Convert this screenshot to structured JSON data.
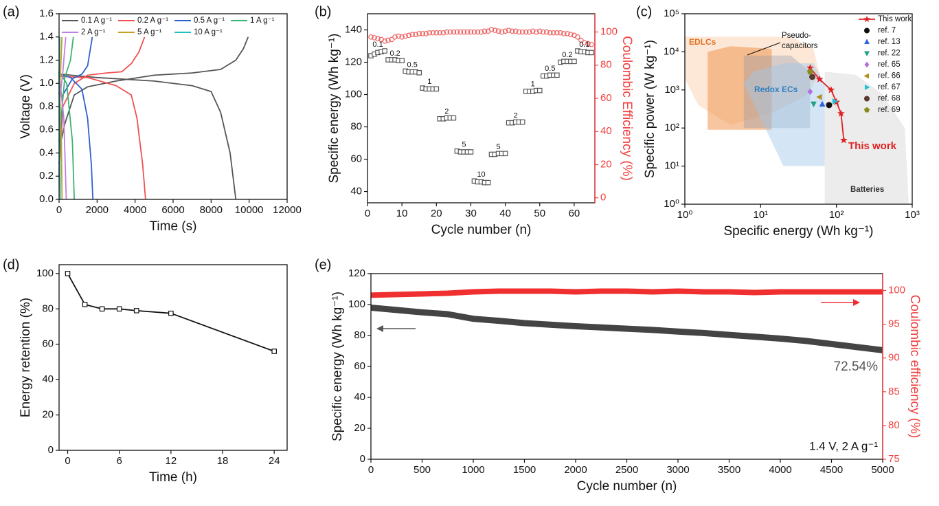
{
  "chart_data": [
    {
      "type": "line",
      "label": "(a)",
      "xlabel": "Time (s)",
      "ylabel": "Voltage (V)",
      "xlim": [
        0,
        12000
      ],
      "xticks": [
        0,
        2000,
        4000,
        6000,
        8000,
        10000,
        12000
      ],
      "ylim": [
        0,
        1.6
      ],
      "yticks": [
        {
          "value": 0,
          "label": "0.0"
        },
        0.2,
        0.4,
        0.6,
        0.8,
        {
          "value": 1,
          "label": "1.0"
        },
        1.2,
        1.4,
        1.6
      ],
      "legend": "top",
      "series": [
        {
          "name": "0.1 A g⁻¹",
          "color": "#555555",
          "mode": "lines",
          "x": [
            0,
            100,
            300,
            800,
            1500,
            3000,
            5000,
            7000,
            8500,
            9300,
            9700,
            9950,
            null,
            0,
            2000,
            5000,
            7000,
            8000,
            8500,
            9000,
            9300
          ],
          "values": [
            0.25,
            0.5,
            0.65,
            0.9,
            0.97,
            1.02,
            1.07,
            1.09,
            1.12,
            1.2,
            1.3,
            1.4,
            null,
            1.08,
            1.05,
            1.02,
            0.98,
            0.93,
            0.75,
            0.4,
            0
          ]
        },
        {
          "name": "0.2 A g⁻¹",
          "color": "#f05050",
          "mode": "lines",
          "x": [
            0,
            200,
            800,
            1500,
            2500,
            3300,
            3800,
            4200,
            4500,
            null,
            0,
            1500,
            3000,
            3800,
            4100,
            4400,
            4550
          ],
          "values": [
            0.2,
            0.8,
            1.0,
            1.07,
            1.09,
            1.1,
            1.17,
            1.27,
            1.4,
            null,
            1.06,
            1.05,
            0.98,
            0.9,
            0.7,
            0.3,
            0
          ]
        },
        {
          "name": "0.5 A g⁻¹",
          "color": "#3060d0",
          "mode": "lines",
          "x": [
            0,
            200,
            700,
            1200,
            1500,
            1750,
            null,
            0,
            600,
            1200,
            1500,
            1700,
            1780
          ],
          "values": [
            0.3,
            0.9,
            1.04,
            1.08,
            1.15,
            1.4,
            null,
            1.08,
            1.05,
            0.95,
            0.7,
            0.3,
            0
          ]
        },
        {
          "name": "1 A g⁻¹",
          "color": "#3cb371",
          "mode": "lines",
          "x": [
            0,
            300,
            600,
            750,
            null,
            0,
            400,
            700,
            800
          ],
          "values": [
            0.5,
            1.05,
            1.2,
            1.4,
            null,
            1.1,
            1.0,
            0.5,
            0
          ]
        },
        {
          "name": "2 A g⁻¹",
          "color": "#c080e0",
          "mode": "lines",
          "x": [
            0,
            200,
            350,
            null,
            0,
            250,
            380
          ],
          "values": [
            0.8,
            1.1,
            1.4,
            null,
            1.1,
            0.7,
            0
          ]
        },
        {
          "name": "5 A g⁻¹",
          "color": "#c8a020",
          "mode": "lines",
          "x": [
            0,
            80,
            150,
            null,
            0,
            120,
            160
          ],
          "values": [
            0.9,
            1.1,
            1.4,
            null,
            1.1,
            0.5,
            0
          ]
        },
        {
          "name": "10 A g⁻¹",
          "color": "#20c0c0",
          "mode": "lines",
          "x": [
            0,
            40,
            null,
            0,
            60
          ],
          "values": [
            1.0,
            1.4,
            null,
            1.1,
            0
          ]
        }
      ]
    },
    {
      "type": "scatter",
      "label": "(b)",
      "xlabel": "Cycle number (n)",
      "ylabel": "Specific energy (Wh kg⁻¹)",
      "y2label": "Coulombic Efficiency (%)",
      "y2_color": "#f04040",
      "xlim": [
        0,
        66
      ],
      "xticks": [
        0,
        10,
        20,
        30,
        40,
        50,
        60
      ],
      "ylim": [
        33,
        150
      ],
      "yticks": [
        40,
        60,
        80,
        100,
        120,
        140
      ],
      "y2lim": [
        -3,
        111
      ],
      "y2ticks": [
        0,
        20,
        40,
        60,
        80,
        100
      ],
      "annotations": [
        "0.1",
        "0.2",
        "0.5",
        "1",
        "2",
        "5",
        "10",
        "5",
        "2",
        "1",
        "0.5",
        "0.2",
        "0.1"
      ],
      "x": [
        1,
        2,
        3,
        4,
        5,
        6,
        7,
        8,
        9,
        10,
        11,
        12,
        13,
        14,
        15,
        16,
        17,
        18,
        19,
        20,
        21,
        22,
        23,
        24,
        25,
        26,
        27,
        28,
        29,
        30,
        31,
        32,
        33,
        34,
        35,
        36,
        37,
        38,
        39,
        40,
        41,
        42,
        43,
        44,
        45,
        46,
        47,
        48,
        49,
        50,
        51,
        52,
        53,
        54,
        55,
        56,
        57,
        58,
        59,
        60,
        61,
        62,
        63,
        64,
        65
      ],
      "series": [
        {
          "color": "#555555",
          "mode": "markers",
          "marker": "square-open",
          "values": [
            124,
            125,
            126,
            126.5,
            127,
            121.5,
            121.5,
            121.5,
            121,
            121,
            114.5,
            114,
            114,
            114,
            113.5,
            104,
            103.5,
            103.5,
            103.5,
            103.5,
            85,
            85,
            85.5,
            85.5,
            85.5,
            65,
            64.5,
            64.5,
            64.5,
            64.5,
            46.5,
            46,
            46,
            45.5,
            45.5,
            63,
            63,
            63.5,
            63.5,
            63.5,
            82.5,
            82.5,
            83,
            83,
            83,
            102,
            102,
            102,
            102.5,
            102.5,
            111.5,
            111.5,
            112,
            112,
            112,
            120,
            120.5,
            120.5,
            120.5,
            120.5,
            127,
            126.5,
            126.5,
            126,
            126
          ]
        },
        {
          "color": "#f06060",
          "mode": "markers",
          "marker": "circle-open",
          "axis": "y2",
          "values": [
            97,
            96.5,
            96,
            95.5,
            94.5,
            95,
            95.5,
            97,
            97.5,
            97,
            97.5,
            98,
            98.5,
            98.5,
            99,
            99,
            99,
            99.5,
            99.5,
            99.5,
            99.5,
            99.5,
            100,
            100,
            100,
            100,
            100,
            100,
            100,
            100,
            100,
            100,
            100,
            100.5,
            100.5,
            101.5,
            101,
            100.5,
            100,
            100.5,
            101,
            100.5,
            100.5,
            100,
            100,
            100,
            100,
            100.5,
            100,
            100.5,
            100,
            100,
            99.5,
            99.5,
            99.5,
            99.5,
            99,
            99,
            98.5,
            98,
            97,
            95,
            93.5,
            93,
            92.5
          ]
        }
      ]
    },
    {
      "type": "scatter",
      "label": "(c)",
      "xlabel": "Specific energy (Wh kg⁻¹)",
      "ylabel": "Specific power (W kg⁻¹)",
      "xscale": "log",
      "yscale": "log",
      "xlim": [
        1,
        1000
      ],
      "xticks": [
        {
          "value": 1,
          "label": "10⁰"
        },
        {
          "value": 10,
          "label": "10¹"
        },
        {
          "value": 100,
          "label": "10²"
        },
        {
          "value": 1000,
          "label": "10³"
        }
      ],
      "ylim": [
        1,
        100000
      ],
      "yticks": [
        {
          "value": 1,
          "label": "10⁰"
        },
        {
          "value": 10,
          "label": "10¹"
        },
        {
          "value": 100,
          "label": "10²"
        },
        {
          "value": 1000,
          "label": "10³"
        },
        {
          "value": 10000,
          "label": "10⁴"
        },
        {
          "value": 100000,
          "label": "10⁵"
        }
      ],
      "legend": "upper right",
      "annotations": [
        "EDLCs",
        "Pseudo-",
        "capacitors",
        "Redox ECs",
        "Batteries",
        "This work"
      ],
      "series": [
        {
          "name": "This work",
          "color": "#e02020",
          "mode": "lines+markers",
          "marker": "star",
          "x": [
            45,
            60,
            85,
            100,
            115,
            125
          ],
          "values": [
            3800,
            1900,
            1000,
            480,
            240,
            48
          ]
        },
        {
          "name": "ref. 7",
          "color": "#111111",
          "mode": "markers",
          "marker": "circle",
          "x": [
            80
          ],
          "values": [
            400
          ]
        },
        {
          "name": "ref. 13",
          "color": "#3060e0",
          "mode": "markers",
          "marker": "triangle-up",
          "x": [
            65
          ],
          "values": [
            420
          ]
        },
        {
          "name": "ref. 22",
          "color": "#20a080",
          "mode": "markers",
          "marker": "triangle-down",
          "x": [
            50
          ],
          "values": [
            430
          ]
        },
        {
          "name": "ref. 65",
          "color": "#b070e0",
          "mode": "markers",
          "marker": "diamond",
          "x": [
            45
          ],
          "values": [
            900
          ]
        },
        {
          "name": "ref. 66",
          "color": "#b09020",
          "mode": "markers",
          "marker": "triangle-left",
          "x": [
            60
          ],
          "values": [
            650
          ]
        },
        {
          "name": "ref. 67",
          "color": "#20c0d0",
          "mode": "markers",
          "marker": "triangle-right",
          "x": [
            95
          ],
          "values": [
            500
          ]
        },
        {
          "name": "ref. 68",
          "color": "#5a3a30",
          "mode": "markers",
          "marker": "circle",
          "x": [
            48
          ],
          "values": [
            2200
          ]
        },
        {
          "name": "ref. 69",
          "color": "#8a8a20",
          "mode": "markers",
          "marker": "pentagon",
          "x": [
            45
          ],
          "values": [
            3000
          ]
        }
      ]
    },
    {
      "type": "line",
      "label": "(d)",
      "xlabel": "Time (h)",
      "ylabel": "Energy retention (%)",
      "xlim": [
        -1,
        25.5
      ],
      "xticks": [
        0,
        6,
        12,
        18,
        24
      ],
      "ylim": [
        0,
        105
      ],
      "yticks": [
        0,
        20,
        40,
        60,
        80,
        100
      ],
      "series": [
        {
          "color": "#111111",
          "mode": "lines+markers",
          "marker": "square-open",
          "x": [
            0,
            2,
            4,
            6,
            8,
            12,
            24
          ],
          "values": [
            100,
            82.5,
            80,
            80,
            79,
            77.5,
            56
          ]
        }
      ]
    },
    {
      "type": "line",
      "label": "(e)",
      "xlabel": "Cycle number (n)",
      "ylabel": "Specific energy (Wh kg⁻¹)",
      "y2label": "Coulombic efficiency (%)",
      "y2_color": "#f04040",
      "xlim": [
        0,
        5000
      ],
      "xticks": [
        0,
        500,
        1000,
        1500,
        2000,
        2500,
        3000,
        3500,
        4000,
        4500,
        5000
      ],
      "ylim": [
        0,
        120
      ],
      "yticks": [
        0,
        20,
        40,
        60,
        80,
        100,
        120
      ],
      "y2lim": [
        75,
        102.5
      ],
      "y2ticks": [
        75,
        80,
        85,
        90,
        95,
        100
      ],
      "annotations": [
        "72.54%",
        "1.4 V, 2 A g⁻¹"
      ],
      "x": [
        0,
        250,
        500,
        750,
        1000,
        1250,
        1500,
        1750,
        2000,
        2250,
        2500,
        2750,
        3000,
        3250,
        3500,
        3750,
        4000,
        4250,
        4500,
        4750,
        5000
      ],
      "series": [
        {
          "color": "#444444",
          "mode": "lines",
          "width": 9,
          "values": [
            98,
            96.5,
            95,
            93.8,
            90.8,
            89.5,
            88,
            87,
            86,
            85.2,
            84.4,
            83.6,
            82.6,
            81.6,
            80.4,
            79.2,
            78,
            76.5,
            74.5,
            72.5,
            70.5
          ]
        },
        {
          "color": "#f03030",
          "mode": "lines",
          "width": 8,
          "axis": "y2",
          "values": [
            99.3,
            99.4,
            99.5,
            99.6,
            99.8,
            99.9,
            99.9,
            99.9,
            99.8,
            99.9,
            99.9,
            99.8,
            99.9,
            99.8,
            99.8,
            99.7,
            99.8,
            99.8,
            99.8,
            99.8,
            99.8
          ]
        }
      ]
    }
  ]
}
